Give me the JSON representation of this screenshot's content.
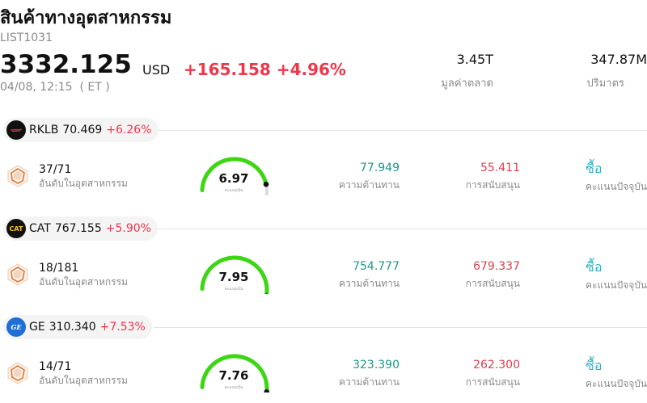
{
  "header": {
    "title": "สินค้าทางอุตสาหกรรม",
    "code": "LIST1031",
    "price": "3332.125",
    "currency": "USD",
    "change": "+165.158 +4.96%",
    "timestamp": "04/08, 12:15  ( ET )",
    "market_cap": {
      "value": "3.45T",
      "label": "มูลค่าตลาด"
    },
    "volume": {
      "value": "347.87M",
      "label": "ปริมาตร"
    }
  },
  "labels": {
    "rank": "อันดับในอุตสาหกรรม",
    "resistance": "ความต้านทาน",
    "support": "การสนับสนุน",
    "score": "คะแนนปัจจุบัน",
    "gauge_caption": "คะแนนหุ้น"
  },
  "colors": {
    "up": "#f0364a",
    "resistance": "#1a9a86",
    "support": "#e03e4e",
    "action": "#2bb5c2",
    "gauge_fill": "#3dd613",
    "gauge_track": "#dcdce6"
  },
  "stocks": [
    {
      "ticker": "RKLB",
      "price": "70.469",
      "change": "+6.26%",
      "logo": "rklb-logo",
      "rank": "37/71",
      "rank_icon": "hexagon-rank-icon",
      "score": "6.97",
      "score_fraction": 0.697,
      "resistance": "77.949",
      "support": "55.411",
      "action": "ซื้อ"
    },
    {
      "ticker": "CAT",
      "price": "767.155",
      "change": "+5.90%",
      "logo": "cat-logo",
      "logo_text": "CAT",
      "rank": "18/181",
      "rank_icon": "hexagon-rank-icon",
      "score": "7.95",
      "score_fraction": 0.795,
      "resistance": "754.777",
      "support": "679.337",
      "action": "ซื้อ"
    },
    {
      "ticker": "GE",
      "price": "310.340",
      "change": "+7.53%",
      "logo": "ge-logo",
      "logo_text": "GE",
      "rank": "14/71",
      "rank_icon": "hexagon-rank-icon",
      "score": "7.76",
      "score_fraction": 0.776,
      "resistance": "323.390",
      "support": "262.300",
      "action": "ซื้อ"
    }
  ]
}
